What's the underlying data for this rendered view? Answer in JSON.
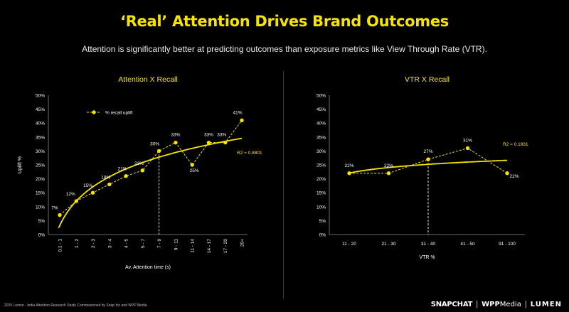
{
  "header": {
    "title": "‘Real’ Attention Drives Brand Outcomes",
    "subtitle": "Attention is significantly better at predicting outcomes than exposure metrics like View Through Rate (VTR)."
  },
  "colors": {
    "accent": "#f5e400",
    "background": "#000000",
    "text": "#ffffff"
  },
  "chart_data": [
    {
      "type": "line",
      "title": "Attention X Recall",
      "xlabel": "Av. Attention time (s)",
      "ylabel": "Uplift %",
      "ylim": [
        0,
        50
      ],
      "yticks": [
        "0%",
        "5%",
        "10%",
        "15%",
        "20%",
        "25%",
        "30%",
        "35%",
        "40%",
        "45%",
        "50%"
      ],
      "categories": [
        "0.1 - 1",
        "1 - 2",
        "2 - 3",
        "3 - 4",
        "4 - 5",
        "5 - 7",
        "7 - 9",
        "9 - 11",
        "11 - 14",
        "14 - 17",
        "17 - 20",
        "20+"
      ],
      "series": [
        {
          "name": "% recall uplift",
          "values": [
            7,
            12,
            15,
            18,
            21,
            23,
            30,
            33,
            25,
            33,
            33,
            41
          ],
          "labels": [
            "7%",
            "12%",
            "15%",
            "18%",
            "21%",
            "23%",
            "30%",
            "33%",
            "25%",
            "33%",
            "33%",
            "41%"
          ]
        }
      ],
      "trendline": {
        "type": "logarithmic",
        "r2_label": "R2 = 0.8801"
      },
      "marker_category": "7 - 9",
      "legend_position": "top-left",
      "grid": false
    },
    {
      "type": "line",
      "title": "VTR X Recall",
      "xlabel": "VTR %",
      "ylabel": "",
      "ylim": [
        0,
        50
      ],
      "yticks": [
        "0%",
        "5%",
        "10%",
        "15%",
        "20%",
        "25%",
        "30%",
        "35%",
        "40%",
        "45%",
        "50%"
      ],
      "categories": [
        "11 - 20",
        "21 - 30",
        "31 - 40",
        "41 - 50",
        "91 - 100"
      ],
      "series": [
        {
          "values": [
            22,
            22,
            27,
            31,
            22
          ],
          "labels": [
            "22%",
            "22%",
            "27%",
            "31%",
            "22%"
          ]
        }
      ],
      "trendline": {
        "type": "logarithmic",
        "r2_label": "R2 = 0.1931"
      },
      "marker_category": "31 - 40",
      "grid": false
    }
  ],
  "footer": {
    "note": "2025 Lumen - India Attention Research Study Commissioned by Snap Inc and WPP Media",
    "brand_snap": "SNAPCHAT",
    "brand_sep_1": "|",
    "brand_wpp_bold": "WPP",
    "brand_wpp": "Media",
    "brand_sep_2": "|",
    "brand_lumen": "LUMEN"
  }
}
